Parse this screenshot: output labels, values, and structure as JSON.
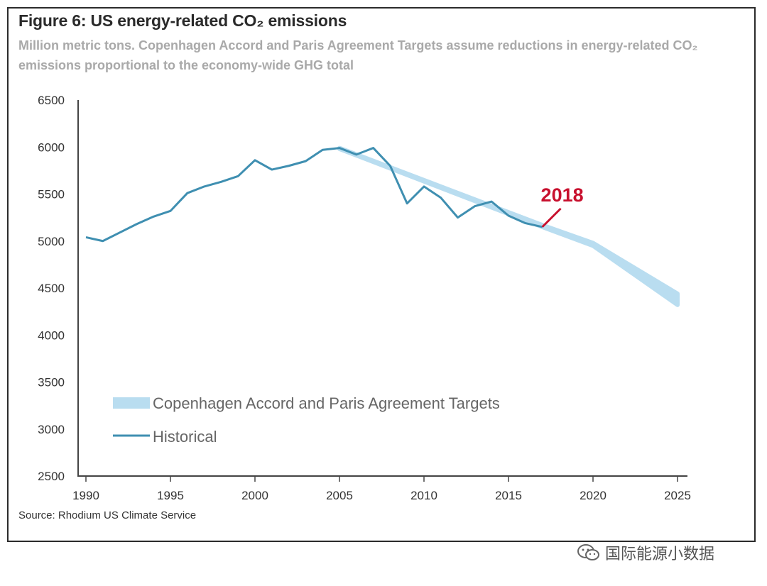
{
  "chart_data": {
    "type": "line",
    "title": "Figure 6: US energy-related CO₂ emissions",
    "subtitle": "Million metric tons. Copenhagen Accord and Paris Agreement Targets assume reductions in energy-related CO₂ emissions proportional to the economy-wide GHG total",
    "xlabel": "",
    "ylabel": "",
    "xlim": [
      1990,
      2025
    ],
    "ylim": [
      2500,
      6500
    ],
    "x_ticks": [
      1990,
      1995,
      2000,
      2005,
      2010,
      2015,
      2020,
      2025
    ],
    "y_ticks": [
      2500,
      3000,
      3500,
      4000,
      4500,
      5000,
      5500,
      6000,
      6500
    ],
    "grid": false,
    "legend_position": "bottom-left",
    "series": [
      {
        "name": "Copenhagen Accord and Paris Agreement Targets",
        "color": "#b9ddf0",
        "x": [
          2005,
          2017,
          2020,
          2025
        ],
        "y_low": [
          5980,
          5150,
          4950,
          4320
        ],
        "y_high": [
          5990,
          5170,
          4980,
          4440
        ]
      },
      {
        "name": "Historical",
        "color": "#3f8fb1",
        "x": [
          1990,
          1991,
          1992,
          1993,
          1994,
          1995,
          1996,
          1997,
          1998,
          1999,
          2000,
          2001,
          2002,
          2003,
          2004,
          2005,
          2006,
          2007,
          2008,
          2009,
          2010,
          2011,
          2012,
          2013,
          2014,
          2015,
          2016,
          2017
        ],
        "y": [
          5040,
          5000,
          5090,
          5180,
          5260,
          5320,
          5510,
          5580,
          5630,
          5690,
          5860,
          5760,
          5800,
          5850,
          5970,
          5990,
          5920,
          5990,
          5800,
          5400,
          5580,
          5460,
          5250,
          5370,
          5420,
          5270,
          5190,
          5150
        ]
      }
    ],
    "annotations": [
      {
        "text": "2018",
        "x": 2017,
        "y": 5150,
        "color": "#c8102e"
      }
    ],
    "source": "Source: Rhodium US Climate Service"
  },
  "watermark": {
    "text": "国际能源小数据",
    "icon": "wechat-icon"
  }
}
